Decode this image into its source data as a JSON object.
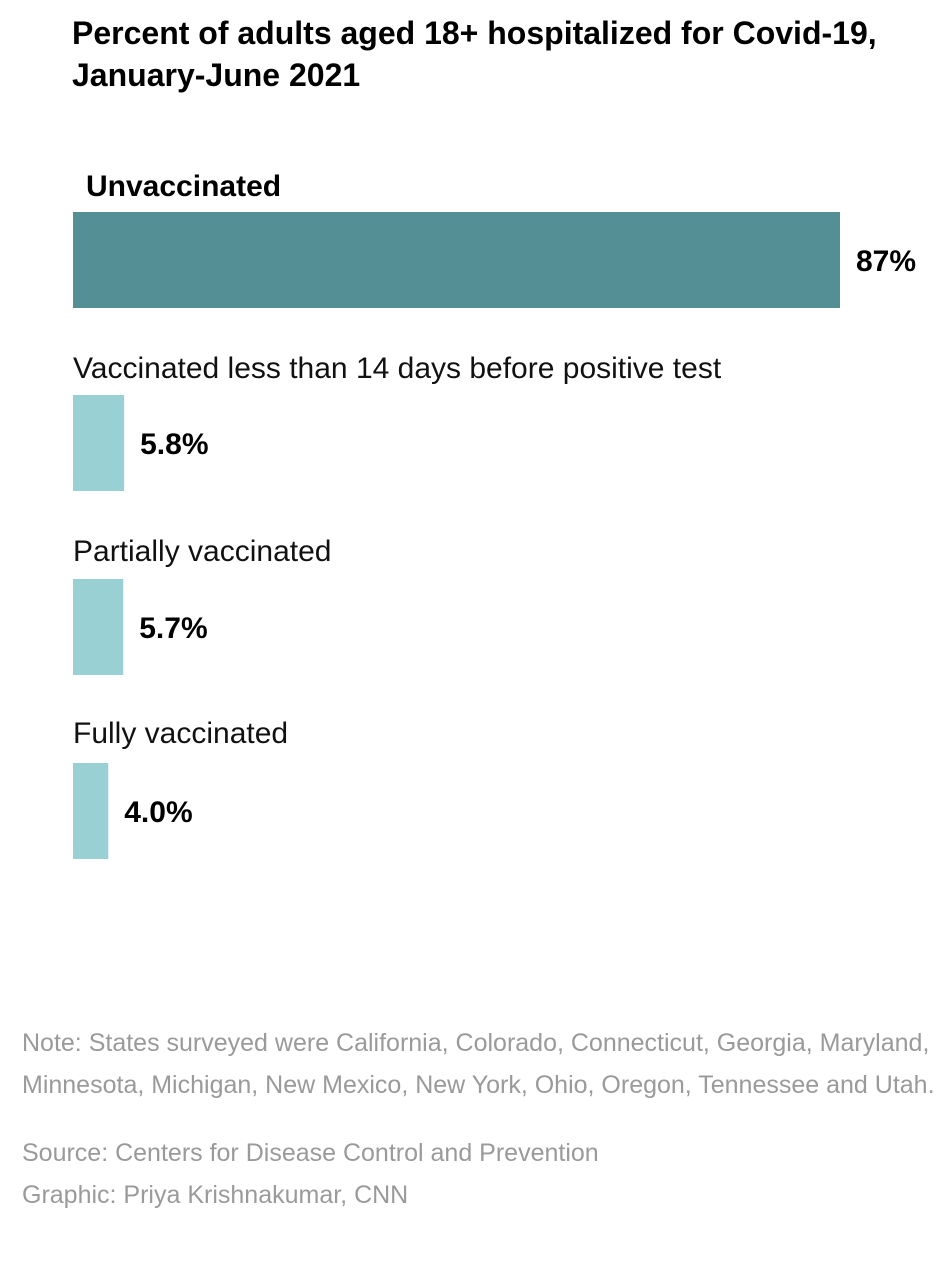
{
  "chart_data": {
    "type": "bar",
    "orientation": "horizontal",
    "title": "Percent of adults aged 18+ hospitalized for Covid-19, January-June 2021",
    "categories": [
      "Unvaccinated",
      "Vaccinated less than 14 days before positive test",
      "Partially vaccinated",
      "Fully vaccinated"
    ],
    "values": [
      87,
      5.8,
      5.7,
      4.0
    ],
    "value_labels": [
      "87%",
      "5.8%",
      "5.7%",
      "4.0%"
    ],
    "xlim": [
      0,
      87
    ],
    "grid": false,
    "colors": [
      "#538f95",
      "#99d0d3",
      "#99d0d3",
      "#99d0d3"
    ]
  },
  "notes": {
    "note": "Note: States surveyed were California, Colorado, Connecticut, Georgia, Maryland, Minnesota, Michigan, New Mexico, New York, Ohio, Oregon, Tennessee and Utah.",
    "source": "Source: Centers for Disease Control and Prevention",
    "credit": "Graphic: Priya Krishnakumar, CNN"
  }
}
